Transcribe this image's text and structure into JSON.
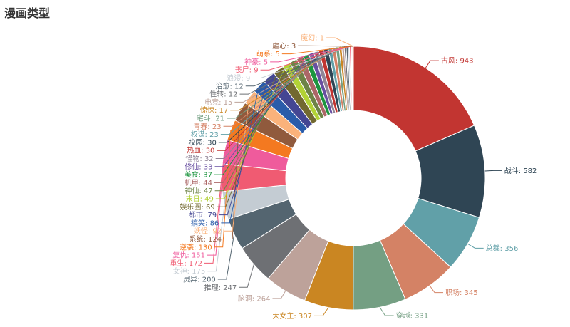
{
  "chart_data": {
    "type": "pie",
    "variant": "donut",
    "title": "漫画类型",
    "label_format": "{name}: {value}",
    "series": [
      {
        "name": "古风",
        "value": 943,
        "color": "#c23531"
      },
      {
        "name": "战斗",
        "value": 582,
        "color": "#2f4554"
      },
      {
        "name": "总裁",
        "value": 356,
        "color": "#61a0a8"
      },
      {
        "name": "职场",
        "value": 345,
        "color": "#d48265"
      },
      {
        "name": "穿越",
        "value": 331,
        "color": "#749f83"
      },
      {
        "name": "大女主",
        "value": 307,
        "color": "#ca8622"
      },
      {
        "name": "脑洞",
        "value": 264,
        "color": "#bda29a"
      },
      {
        "name": "推理",
        "value": 247,
        "color": "#6e7074"
      },
      {
        "name": "灵异",
        "value": 200,
        "color": "#546570"
      },
      {
        "name": "女神",
        "value": 175,
        "color": "#c4ccd3"
      },
      {
        "name": "重生",
        "value": 172,
        "color": "#f05b72"
      },
      {
        "name": "复仇",
        "value": 151,
        "color": "#ef5b9c"
      },
      {
        "name": "逆袭",
        "value": 130,
        "color": "#f47920"
      },
      {
        "name": "系统",
        "value": 124,
        "color": "#905a3d"
      },
      {
        "name": "妖怪",
        "value": 92,
        "color": "#fab27b"
      },
      {
        "name": "搞笑",
        "value": 86,
        "color": "#2a5caa"
      },
      {
        "name": "都市",
        "value": 79,
        "color": "#444693"
      },
      {
        "name": "娱乐圈",
        "value": 69,
        "color": "#726930"
      },
      {
        "name": "末日",
        "value": 49,
        "color": "#b2d235"
      },
      {
        "name": "神仙",
        "value": 47,
        "color": "#6d8346"
      },
      {
        "name": "机甲",
        "value": 44,
        "color": "#ac6767"
      },
      {
        "name": "美食",
        "value": 37,
        "color": "#1d953f"
      },
      {
        "name": "修仙",
        "value": 33,
        "color": "#6950a1"
      },
      {
        "name": "怪物",
        "value": 32,
        "color": "#918597"
      },
      {
        "name": "热血",
        "value": 30,
        "color": "#c23531"
      },
      {
        "name": "校园",
        "value": 30,
        "color": "#2f4554"
      },
      {
        "name": "权谋",
        "value": 23,
        "color": "#61a0a8"
      },
      {
        "name": "青春",
        "value": 23,
        "color": "#d48265"
      },
      {
        "name": "宅斗",
        "value": 21,
        "color": "#749f83"
      },
      {
        "name": "惊悚",
        "value": 17,
        "color": "#ca8622"
      },
      {
        "name": "电竞",
        "value": 15,
        "color": "#bda29a"
      },
      {
        "name": "性转",
        "value": 12,
        "color": "#6e7074"
      },
      {
        "name": "治愈",
        "value": 12,
        "color": "#546570"
      },
      {
        "name": "浪漫",
        "value": 9,
        "color": "#c4ccd3"
      },
      {
        "name": "丧尸",
        "value": 9,
        "color": "#f05b72"
      },
      {
        "name": "神豪",
        "value": 5,
        "color": "#ef5b9c"
      },
      {
        "name": "萌系",
        "value": 5,
        "color": "#f47920"
      },
      {
        "name": "虐心",
        "value": 3,
        "color": "#905a3d"
      },
      {
        "name": "魔幻",
        "value": 1,
        "color": "#fab27b"
      },
      {
        "name": "",
        "value": 1,
        "color": "#2a5caa"
      }
    ]
  }
}
